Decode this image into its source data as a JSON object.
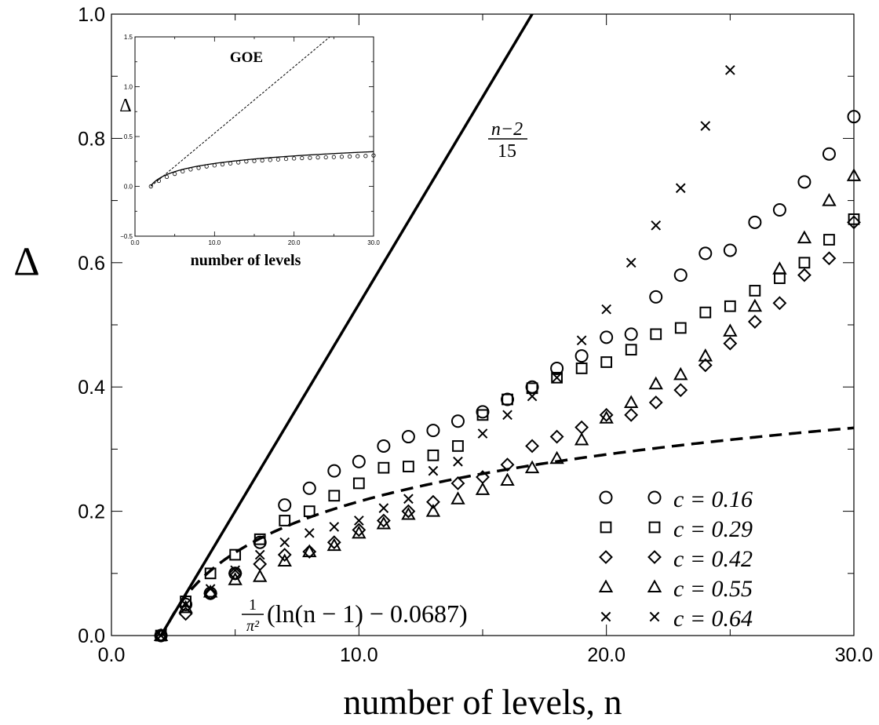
{
  "chart_data": [
    {
      "type": "scatter",
      "title": "",
      "xlabel": "number of levels, n",
      "ylabel": "Δ",
      "xlim": [
        0,
        30
      ],
      "ylim": [
        0,
        1
      ],
      "xticks": [
        "0.0",
        "10.0",
        "20.0",
        "30.0"
      ],
      "yticks": [
        "0.0",
        "0.2",
        "0.4",
        "0.6",
        "0.8",
        "1.0"
      ],
      "grid": false,
      "legend_position": "bottom-right",
      "series": [
        {
          "name": "c = 0.16",
          "marker": "circle",
          "x": [
            2,
            3,
            4,
            5,
            6,
            7,
            8,
            9,
            10,
            11,
            12,
            13,
            14,
            15,
            16,
            17,
            18,
            19,
            20,
            21,
            22,
            23,
            24,
            25,
            26,
            27,
            28,
            29,
            30
          ],
          "y": [
            0,
            0.05,
            0.068,
            0.1,
            0.15,
            0.21,
            0.237,
            0.265,
            0.28,
            0.305,
            0.32,
            0.33,
            0.345,
            0.36,
            0.38,
            0.4,
            0.43,
            0.45,
            0.48,
            0.485,
            0.545,
            0.58,
            0.615,
            0.62,
            0.665,
            0.685,
            0.73,
            0.775,
            0.835
          ]
        },
        {
          "name": "c = 0.29",
          "marker": "square",
          "x": [
            2,
            3,
            4,
            5,
            6,
            7,
            8,
            9,
            10,
            11,
            12,
            13,
            14,
            15,
            16,
            17,
            18,
            19,
            20,
            21,
            22,
            23,
            24,
            25,
            26,
            27,
            28,
            29,
            30
          ],
          "y": [
            0,
            0.055,
            0.1,
            0.13,
            0.155,
            0.185,
            0.2,
            0.225,
            0.245,
            0.27,
            0.272,
            0.29,
            0.305,
            0.355,
            0.38,
            0.398,
            0.415,
            0.43,
            0.44,
            0.46,
            0.485,
            0.495,
            0.52,
            0.53,
            0.555,
            0.575,
            0.6,
            0.637,
            0.67
          ]
        },
        {
          "name": "c = 0.42",
          "marker": "diamond",
          "x": [
            2,
            3,
            4,
            5,
            6,
            7,
            8,
            9,
            10,
            11,
            12,
            13,
            14,
            15,
            16,
            17,
            18,
            19,
            20,
            21,
            22,
            23,
            24,
            25,
            26,
            27,
            28,
            29,
            30
          ],
          "y": [
            0,
            0.035,
            0.068,
            0.1,
            0.115,
            0.13,
            0.135,
            0.15,
            0.17,
            0.185,
            0.2,
            0.215,
            0.245,
            0.255,
            0.275,
            0.305,
            0.32,
            0.335,
            0.355,
            0.355,
            0.375,
            0.395,
            0.435,
            0.47,
            0.505,
            0.535,
            0.58,
            0.607,
            0.665
          ]
        },
        {
          "name": "c = 0.55",
          "marker": "triangle",
          "x": [
            2,
            3,
            4,
            5,
            6,
            7,
            8,
            9,
            10,
            11,
            12,
            13,
            14,
            15,
            16,
            17,
            18,
            19,
            20,
            21,
            22,
            23,
            24,
            25,
            26,
            27,
            28,
            29,
            30
          ],
          "y": [
            0,
            0.045,
            0.07,
            0.09,
            0.095,
            0.12,
            0.135,
            0.145,
            0.165,
            0.18,
            0.195,
            0.2,
            0.22,
            0.235,
            0.25,
            0.27,
            0.285,
            0.315,
            0.35,
            0.375,
            0.405,
            0.42,
            0.45,
            0.49,
            0.53,
            0.59,
            0.64,
            0.7,
            0.74
          ]
        },
        {
          "name": "c = 0.64",
          "marker": "cross",
          "x": [
            2,
            3,
            4,
            5,
            6,
            7,
            8,
            9,
            10,
            11,
            12,
            13,
            14,
            15,
            16,
            17,
            18,
            19,
            20,
            21,
            22,
            23,
            24,
            25
          ],
          "y": [
            0,
            0.05,
            0.075,
            0.105,
            0.13,
            0.15,
            0.165,
            0.175,
            0.185,
            0.205,
            0.22,
            0.265,
            0.28,
            0.325,
            0.355,
            0.385,
            0.415,
            0.475,
            0.525,
            0.6,
            0.66,
            0.72,
            0.82,
            0.91
          ]
        }
      ],
      "curves": [
        {
          "label": "(n−2)/15",
          "style": "solid",
          "formula": "(n-2)/15"
        },
        {
          "label": "1/π²(ln(n − 1) − 0.0687)",
          "style": "dashed",
          "formula": "(ln(n-1)-0.0687)/pi^2"
        }
      ],
      "annotations": [
        {
          "kind": "fraction",
          "num": "n−2",
          "den": "15"
        },
        {
          "kind": "formula",
          "num": "1",
          "den": "π²",
          "text": "(ln(n − 1) − 0.0687)"
        }
      ],
      "legend_labels": [
        "c = 0.16",
        "c = 0.29",
        "c = 0.42",
        "c = 0.55",
        "c = 0.64"
      ]
    },
    {
      "type": "scatter",
      "title": "GOE",
      "xlabel": "number of levels",
      "ylabel": "Δ",
      "xlim": [
        0,
        30
      ],
      "ylim": [
        -0.5,
        1.5
      ],
      "xticks": [
        "0.0",
        "10.0",
        "20.0",
        "30.0"
      ],
      "yticks": [
        "−0.5",
        "0.0",
        "0.5",
        "1.0",
        "1.5"
      ],
      "grid": false,
      "series": [
        {
          "marker": "circle",
          "x": [
            2,
            3,
            4,
            5,
            6,
            7,
            8,
            9,
            10,
            11,
            12,
            13,
            14,
            15,
            16,
            17,
            18,
            19,
            20,
            21,
            22,
            23,
            24,
            25,
            26,
            27,
            28,
            29,
            30
          ],
          "y": [
            0,
            0.055,
            0.095,
            0.125,
            0.15,
            0.17,
            0.185,
            0.2,
            0.21,
            0.22,
            0.23,
            0.24,
            0.25,
            0.255,
            0.26,
            0.265,
            0.27,
            0.275,
            0.28,
            0.283,
            0.286,
            0.29,
            0.292,
            0.294,
            0.297,
            0.3,
            0.303,
            0.305,
            0.31
          ]
        }
      ],
      "curves": [
        {
          "style": "dotted",
          "formula": "(n-2)/15"
        },
        {
          "style": "solid",
          "formula": "(ln(n-1)+0.0687)/pi^2"
        }
      ]
    }
  ]
}
